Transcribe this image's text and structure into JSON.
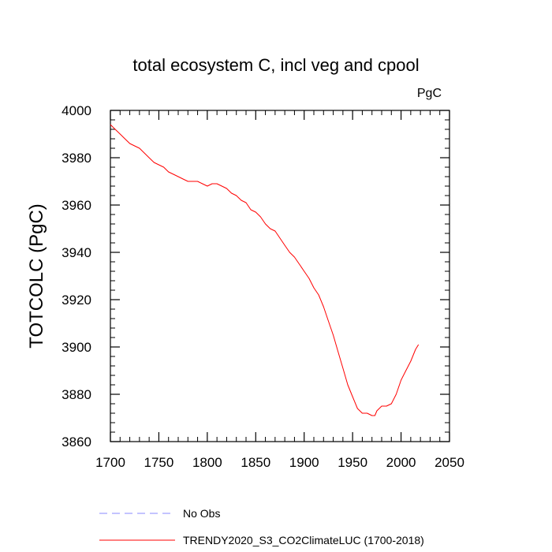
{
  "chart_data": {
    "type": "line",
    "title": "total ecosystem C, incl veg and cpool",
    "units": "PgC",
    "ylabel": "TOTCOLC  (PgC)",
    "xlabel": "",
    "xlim": [
      1700,
      2050
    ],
    "ylim": [
      3860,
      4000
    ],
    "x_ticks": [
      1700,
      1750,
      1800,
      1850,
      1900,
      1950,
      2000,
      2050
    ],
    "y_ticks": [
      3860,
      3880,
      3900,
      3920,
      3940,
      3960,
      3980,
      4000
    ],
    "grid": false,
    "legend_position": "bottom",
    "series": [
      {
        "name": "TRENDY2020_S3_CO2ClimateLUC (1700-2018)",
        "color": "#ff0000",
        "style": "solid",
        "x": [
          1700,
          1705,
          1710,
          1715,
          1720,
          1725,
          1730,
          1735,
          1740,
          1745,
          1750,
          1755,
          1760,
          1765,
          1770,
          1775,
          1780,
          1785,
          1790,
          1795,
          1800,
          1805,
          1810,
          1815,
          1820,
          1825,
          1830,
          1835,
          1840,
          1845,
          1850,
          1855,
          1860,
          1865,
          1870,
          1875,
          1880,
          1885,
          1890,
          1895,
          1900,
          1905,
          1910,
          1915,
          1920,
          1925,
          1930,
          1935,
          1940,
          1945,
          1950,
          1955,
          1960,
          1965,
          1970,
          1973,
          1975,
          1980,
          1985,
          1990,
          1995,
          2000,
          2005,
          2010,
          2015,
          2018
        ],
        "y": [
          3994,
          3992,
          3990,
          3988,
          3986,
          3985,
          3984,
          3982,
          3980,
          3978,
          3977,
          3976,
          3974,
          3973,
          3972,
          3971,
          3970,
          3970,
          3970,
          3969,
          3968,
          3969,
          3969,
          3968,
          3967,
          3965,
          3964,
          3962,
          3961,
          3958,
          3957,
          3955,
          3952,
          3950,
          3949,
          3946,
          3943,
          3940,
          3938,
          3935,
          3932,
          3929,
          3925,
          3922,
          3917,
          3911,
          3905,
          3898,
          3891,
          3884,
          3879,
          3874,
          3872,
          3872,
          3871,
          3871,
          3873,
          3875,
          3875,
          3876,
          3880,
          3886,
          3890,
          3894,
          3899,
          3901
        ]
      },
      {
        "name": "No Obs",
        "color": "#8888ff",
        "style": "dashed",
        "x": [],
        "y": []
      }
    ]
  }
}
